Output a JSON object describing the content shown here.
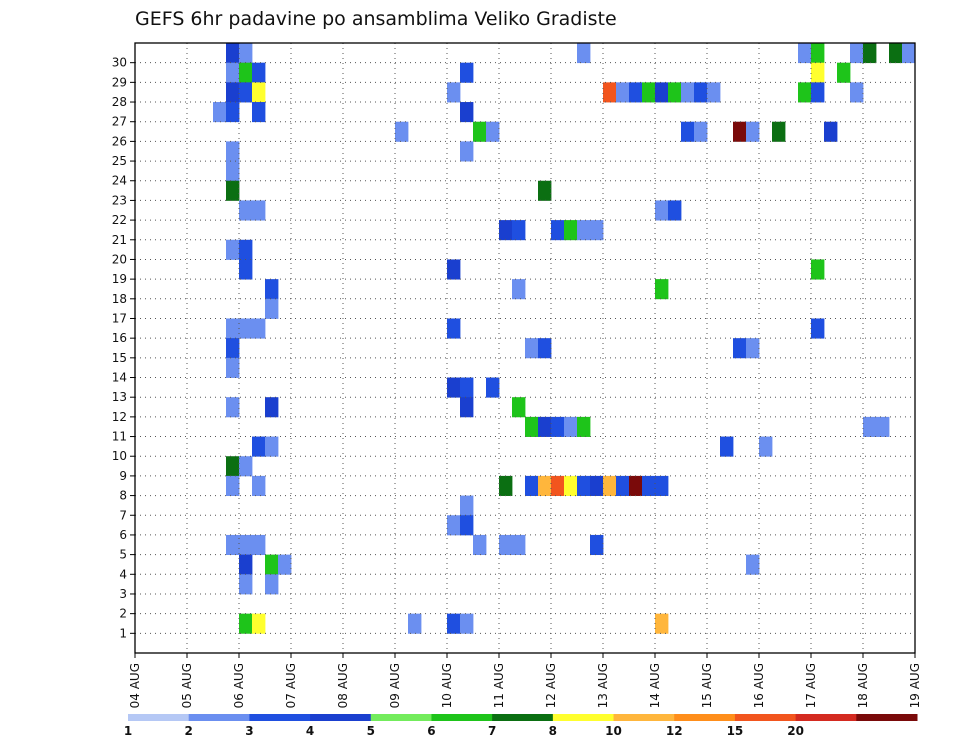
{
  "chart_data": {
    "type": "heatmap",
    "title": "GEFS 6hr padavine po ansamblima Veliko Gradiste",
    "x_ticks": [
      "04 AUG",
      "05 AUG",
      "06 AUG",
      "07 AUG",
      "08 AUG",
      "09 AUG",
      "10 AUG",
      "11 AUG",
      "12 AUG",
      "13 AUG",
      "14 AUG",
      "15 AUG",
      "16 AUG",
      "17 AUG",
      "18 AUG",
      "19 AUG"
    ],
    "x_range": [
      0,
      60
    ],
    "y_range": [
      0,
      30
    ],
    "y_ticks": [
      "1",
      "2",
      "3",
      "4",
      "5",
      "6",
      "7",
      "8",
      "9",
      "10",
      "11",
      "12",
      "13",
      "14",
      "15",
      "16",
      "17",
      "18",
      "19",
      "20",
      "21",
      "22",
      "23",
      "24",
      "25",
      "26",
      "27",
      "28",
      "29",
      "30"
    ],
    "grid": true,
    "legend": "bottom",
    "colorbar": {
      "labels": [
        "1",
        "2",
        "3",
        "4",
        "5",
        "6",
        "7",
        "8",
        "10",
        "12",
        "15",
        "20"
      ],
      "colors": [
        "#b5c8f5",
        "#6b8ff0",
        "#1f4fe0",
        "#1a3fcf",
        "#73ec5c",
        "#1ec41a",
        "#0b6f12",
        "#ffff2e",
        "#ffb63c",
        "#ff8e1a",
        "#f2551e",
        "#d42a20",
        "#7a0a0a"
      ]
    },
    "cells": [
      [
        7,
        30,
        3
      ],
      [
        8,
        30,
        1
      ],
      [
        34,
        30,
        1
      ],
      [
        51,
        30,
        1
      ],
      [
        52,
        30,
        5
      ],
      [
        55,
        30,
        1
      ],
      [
        56,
        30,
        6
      ],
      [
        58,
        30,
        6
      ],
      [
        59,
        30,
        1
      ],
      [
        7,
        29,
        1
      ],
      [
        8,
        29,
        5
      ],
      [
        9,
        29,
        2
      ],
      [
        25,
        29,
        2
      ],
      [
        52,
        29,
        7
      ],
      [
        54,
        29,
        5
      ],
      [
        7,
        28,
        3
      ],
      [
        8,
        28,
        2
      ],
      [
        9,
        28,
        7
      ],
      [
        24,
        28,
        1
      ],
      [
        36,
        28,
        10
      ],
      [
        37,
        28,
        1
      ],
      [
        38,
        28,
        2
      ],
      [
        39,
        28,
        5
      ],
      [
        40,
        28,
        3
      ],
      [
        41,
        28,
        5
      ],
      [
        42,
        28,
        1
      ],
      [
        43,
        28,
        2
      ],
      [
        44,
        28,
        1
      ],
      [
        51,
        28,
        5
      ],
      [
        52,
        28,
        2
      ],
      [
        55,
        28,
        1
      ],
      [
        6,
        27,
        1
      ],
      [
        7,
        27,
        2
      ],
      [
        9,
        27,
        2
      ],
      [
        25,
        27,
        3
      ],
      [
        20,
        26,
        1
      ],
      [
        26,
        26,
        5
      ],
      [
        27,
        26,
        1
      ],
      [
        42,
        26,
        2
      ],
      [
        43,
        26,
        1
      ],
      [
        46,
        26,
        12
      ],
      [
        47,
        26,
        1
      ],
      [
        49,
        26,
        6
      ],
      [
        53,
        26,
        3
      ],
      [
        7,
        25,
        1
      ],
      [
        25,
        25,
        1
      ],
      [
        7,
        24,
        1
      ],
      [
        7,
        23,
        6
      ],
      [
        31,
        23,
        6
      ],
      [
        8,
        22,
        1
      ],
      [
        9,
        22,
        1
      ],
      [
        40,
        22,
        1
      ],
      [
        41,
        22,
        2
      ],
      [
        28,
        21,
        3
      ],
      [
        29,
        21,
        2
      ],
      [
        32,
        21,
        2
      ],
      [
        33,
        21,
        5
      ],
      [
        34,
        21,
        1
      ],
      [
        35,
        21,
        1
      ],
      [
        7,
        20,
        1
      ],
      [
        8,
        20,
        2
      ],
      [
        8,
        19,
        2
      ],
      [
        24,
        19,
        3
      ],
      [
        52,
        19,
        5
      ],
      [
        10,
        18,
        2
      ],
      [
        29,
        18,
        1
      ],
      [
        40,
        18,
        5
      ],
      [
        10,
        17,
        1
      ],
      [
        7,
        16,
        1
      ],
      [
        8,
        16,
        1
      ],
      [
        9,
        16,
        1
      ],
      [
        24,
        16,
        2
      ],
      [
        52,
        16,
        2
      ],
      [
        7,
        15,
        2
      ],
      [
        30,
        15,
        1
      ],
      [
        31,
        15,
        2
      ],
      [
        46,
        15,
        2
      ],
      [
        47,
        15,
        1
      ],
      [
        7,
        14,
        1
      ],
      [
        24,
        13,
        3
      ],
      [
        25,
        13,
        2
      ],
      [
        27,
        13,
        2
      ],
      [
        7,
        12,
        1
      ],
      [
        10,
        12,
        3
      ],
      [
        25,
        12,
        3
      ],
      [
        29,
        12,
        5
      ],
      [
        30,
        11,
        5
      ],
      [
        31,
        11,
        3
      ],
      [
        32,
        11,
        2
      ],
      [
        33,
        11,
        1
      ],
      [
        34,
        11,
        5
      ],
      [
        56,
        11,
        1
      ],
      [
        57,
        11,
        1
      ],
      [
        9,
        10,
        2
      ],
      [
        10,
        10,
        1
      ],
      [
        45,
        10,
        2
      ],
      [
        48,
        10,
        1
      ],
      [
        7,
        9,
        6
      ],
      [
        8,
        9,
        1
      ],
      [
        7,
        8,
        1
      ],
      [
        9,
        8,
        1
      ],
      [
        28,
        8,
        6
      ],
      [
        30,
        8,
        2
      ],
      [
        31,
        8,
        8
      ],
      [
        32,
        8,
        10
      ],
      [
        33,
        8,
        7
      ],
      [
        34,
        8,
        2
      ],
      [
        35,
        8,
        3
      ],
      [
        36,
        8,
        8
      ],
      [
        37,
        8,
        2
      ],
      [
        38,
        8,
        12
      ],
      [
        39,
        8,
        2
      ],
      [
        40,
        8,
        2
      ],
      [
        25,
        7,
        1
      ],
      [
        24,
        6,
        1
      ],
      [
        25,
        6,
        2
      ],
      [
        7,
        5,
        1
      ],
      [
        8,
        5,
        1
      ],
      [
        9,
        5,
        1
      ],
      [
        26,
        5,
        1
      ],
      [
        28,
        5,
        1
      ],
      [
        29,
        5,
        1
      ],
      [
        35,
        5,
        2
      ],
      [
        8,
        4,
        3
      ],
      [
        10,
        4,
        5
      ],
      [
        11,
        4,
        1
      ],
      [
        47,
        4,
        1
      ],
      [
        8,
        3,
        1
      ],
      [
        10,
        3,
        1
      ],
      [
        8,
        1,
        5
      ],
      [
        9,
        1,
        7
      ],
      [
        21,
        1,
        1
      ],
      [
        24,
        1,
        2
      ],
      [
        25,
        1,
        1
      ],
      [
        40,
        1,
        8
      ]
    ]
  }
}
